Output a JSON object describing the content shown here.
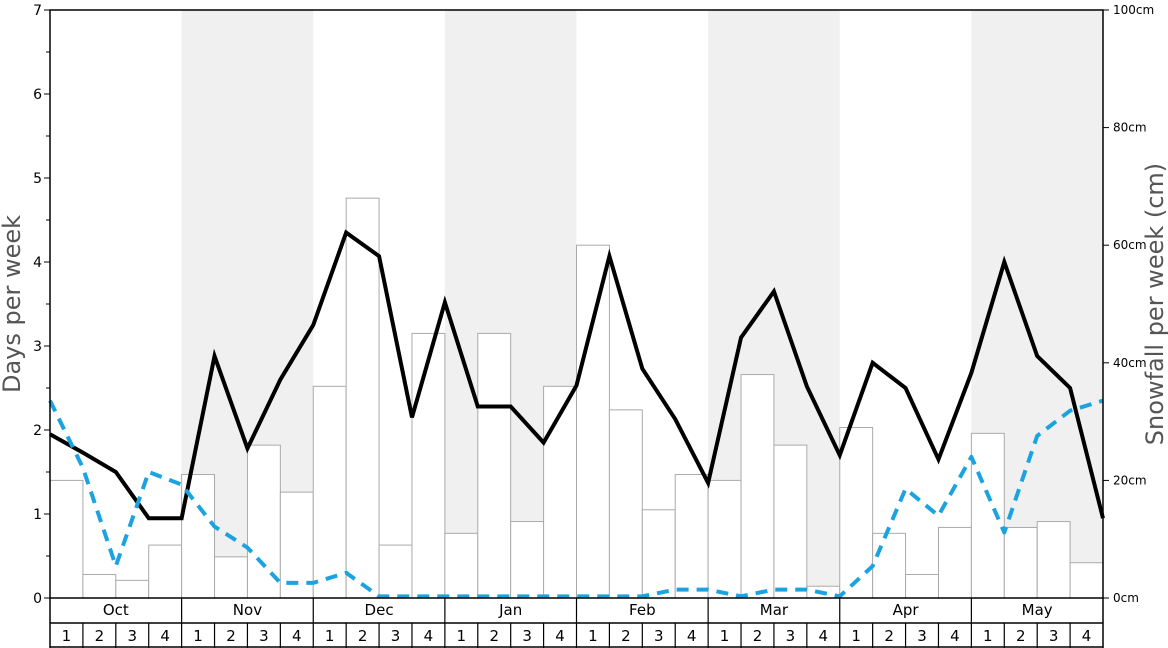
{
  "chart_data": {
    "type": "bar",
    "left_axis_label": "Days per week",
    "right_axis_label": "Snowfall per week (cm)",
    "left_ylim": [
      0,
      7
    ],
    "left_ticks": [
      "0",
      "1",
      "2",
      "3",
      "4",
      "5",
      "6",
      "7"
    ],
    "right_ylim": [
      0,
      100
    ],
    "right_ticks": [
      "0cm",
      "20cm",
      "40cm",
      "60cm",
      "80cm",
      "100cm"
    ],
    "months": [
      "Oct",
      "Nov",
      "Dec",
      "Jan",
      "Feb",
      "Mar",
      "Apr",
      "May"
    ],
    "weeks": [
      "1",
      "2",
      "3",
      "4"
    ],
    "colors": {
      "band": "#f0f0f0",
      "bar_fill": "#ffffff",
      "bar_stroke": "#aaaaaa",
      "snow_days_line": "#000000",
      "dashed_line": "#1aa3e0",
      "axis": "#000000"
    },
    "series": [
      {
        "kind": "bar",
        "axis": "right",
        "values": [
          20,
          4,
          3,
          9,
          21,
          7,
          26,
          18,
          36,
          68,
          9,
          45,
          11,
          45,
          13,
          36,
          60,
          32,
          15,
          21,
          20,
          38,
          26,
          2,
          29,
          11,
          4,
          12,
          28,
          12,
          13,
          6
        ]
      },
      {
        "kind": "line",
        "style": "solid",
        "axis": "left",
        "values": [
          1.95,
          1.73,
          1.5,
          0.95,
          0.95,
          2.88,
          1.78,
          2.6,
          3.25,
          4.35,
          4.07,
          2.15,
          3.52,
          2.28,
          2.28,
          1.85,
          2.53,
          4.07,
          2.73,
          2.13,
          1.37,
          3.1,
          3.65,
          2.52,
          1.7,
          2.8,
          2.5,
          1.65,
          2.68,
          4.0,
          2.88,
          2.5,
          0.95
        ]
      },
      {
        "kind": "line",
        "style": "dashed",
        "axis": "left",
        "values": [
          2.35,
          1.55,
          0.38,
          1.5,
          1.35,
          0.85,
          0.6,
          0.18,
          0.18,
          0.3,
          0.02,
          0.02,
          0.02,
          0.02,
          0.02,
          0.02,
          0.02,
          0.02,
          0.02,
          0.1,
          0.1,
          0.02,
          0.1,
          0.1,
          0.02,
          0.38,
          1.3,
          0.98,
          1.68,
          0.78,
          1.93,
          2.23,
          2.35
        ]
      }
    ]
  }
}
